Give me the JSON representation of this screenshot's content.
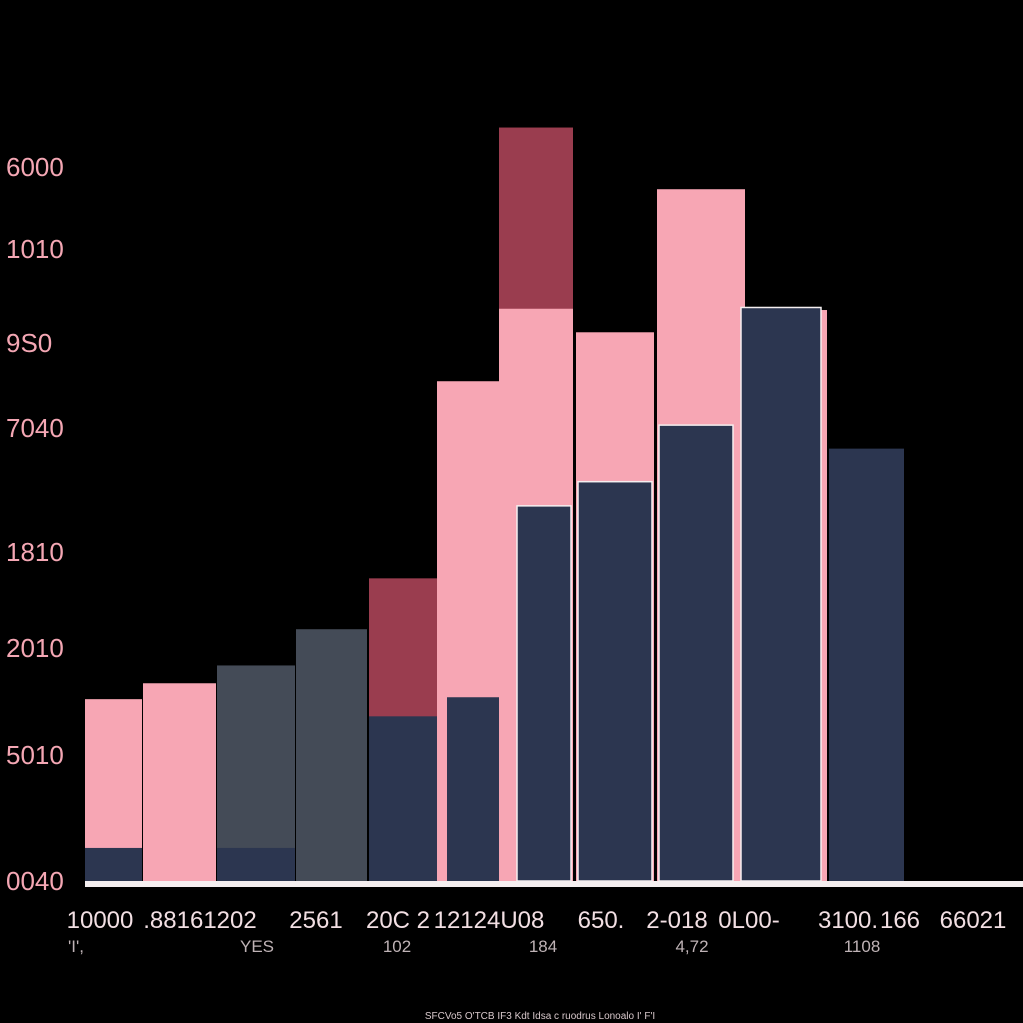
{
  "chart_data": {
    "type": "bar",
    "title": "",
    "xlabel": "",
    "ylabel": "",
    "ylim": [
      0,
      6000
    ],
    "grid": false,
    "legend": "none",
    "y_tick_labels": [
      "6000",
      "1010",
      "9S0",
      "7040",
      "1810",
      "2010",
      "5010",
      "0040"
    ],
    "x_tick_labels": [
      "10000",
      ".88161202",
      "2561",
      "20C 2",
      "12124U08",
      "650.",
      "2-018",
      "0L00-",
      "3100.",
      "166",
      "66021"
    ],
    "x_sub_labels": [
      "'I',",
      "YES",
      "102",
      "184",
      "4,72",
      "1108"
    ],
    "footnote": "SFCVo5 O'TCB IF3 Kdt Idsa  c ruodrus  Lonoalo I' F'I",
    "colors": {
      "background": "#000000",
      "pink": "#f7a6b4",
      "navy": "#2c3650",
      "slate": "#444b57",
      "maroon": "#9a3d4f",
      "axis": "#f5eff0",
      "tick_text": "#f4a7b4"
    },
    "bars": [
      {
        "back": {
          "color": "pink",
          "value": 1430
        },
        "front": {
          "color": "navy",
          "value": 260
        }
      },
      {
        "back": {
          "color": "pink",
          "value": 1555
        }
      },
      {
        "back": {
          "color": "slate",
          "value": 1695
        },
        "front": {
          "color": "navy",
          "value": 260
        }
      },
      {
        "back": {
          "color": "slate",
          "value": 1980
        }
      },
      {
        "back": {
          "color": "maroon",
          "value": 2380
        },
        "front": {
          "color": "navy",
          "value": 1295
        }
      },
      {
        "back": {
          "color": "pink",
          "value": 3930
        },
        "front": {
          "color": "navy",
          "value": 1445
        }
      },
      {
        "back": {
          "color": "maroon",
          "value": 5925
        },
        "middle": {
          "color": "pink",
          "value": 4500
        },
        "front": {
          "color": "navy",
          "value": 2950
        }
      },
      {
        "back": {
          "color": "pink",
          "value": 4315
        },
        "front": {
          "color": "navy",
          "value": 3140
        }
      },
      {
        "back": {
          "color": "pink",
          "value": 5440
        },
        "front": {
          "color": "navy",
          "value": 3585
        }
      },
      {
        "back": {
          "color": "pink",
          "value": 4490
        },
        "front": {
          "color": "navy",
          "value": 4510
        }
      },
      {
        "back": {
          "color": "navy",
          "value": 3400
        }
      }
    ]
  }
}
